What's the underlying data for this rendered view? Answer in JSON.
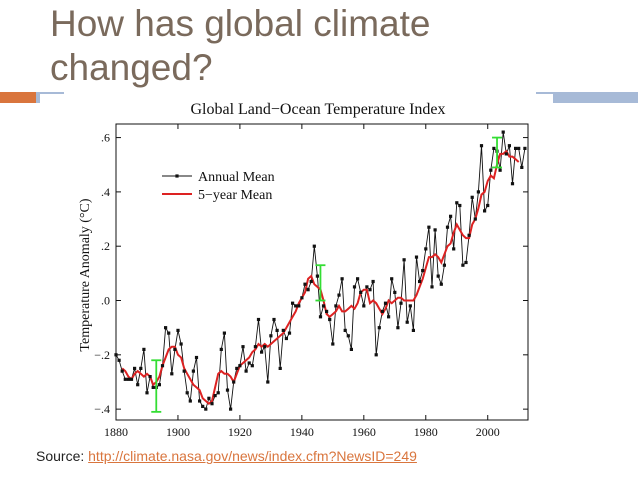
{
  "slide": {
    "title": "How has global climate changed?",
    "source_label": "Source:",
    "source_link": "http://climate.nasa.gov/news/index.cfm?NewsID=249"
  },
  "colors": {
    "title": "#7a6a5c",
    "accent_orange": "#d9753d",
    "accent_blue": "#a7bad7",
    "annual": "#111111",
    "five_year": "#dd2222",
    "error_bar": "#33dd33"
  },
  "chart_data": {
    "type": "line",
    "title": "Global Land−Ocean Temperature Index",
    "xlabel": "",
    "ylabel": "Temperature Anomaly (°C)",
    "xlim": [
      1880,
      2013
    ],
    "ylim": [
      -0.44,
      0.65
    ],
    "xticks": [
      1880,
      1900,
      1920,
      1940,
      1960,
      1980,
      2000
    ],
    "yticks": [
      -0.4,
      -0.2,
      0.0,
      0.2,
      0.4,
      0.6
    ],
    "ytick_labels": [
      "−.4",
      "−.2",
      ".0",
      ".2",
      ".4",
      ".6"
    ],
    "legend": {
      "placement": "top-left",
      "entries": [
        "Annual Mean",
        "5−year Mean"
      ]
    },
    "series": [
      {
        "name": "Annual Mean",
        "x": [
          1880,
          1881,
          1882,
          1883,
          1884,
          1885,
          1886,
          1887,
          1888,
          1889,
          1890,
          1891,
          1892,
          1893,
          1894,
          1895,
          1896,
          1897,
          1898,
          1899,
          1900,
          1901,
          1902,
          1903,
          1904,
          1905,
          1906,
          1907,
          1908,
          1909,
          1910,
          1911,
          1912,
          1913,
          1914,
          1915,
          1916,
          1917,
          1918,
          1919,
          1920,
          1921,
          1922,
          1923,
          1924,
          1925,
          1926,
          1927,
          1928,
          1929,
          1930,
          1931,
          1932,
          1933,
          1934,
          1935,
          1936,
          1937,
          1938,
          1939,
          1940,
          1941,
          1942,
          1943,
          1944,
          1945,
          1946,
          1947,
          1948,
          1949,
          1950,
          1951,
          1952,
          1953,
          1954,
          1955,
          1956,
          1957,
          1958,
          1959,
          1960,
          1961,
          1962,
          1963,
          1964,
          1965,
          1966,
          1967,
          1968,
          1969,
          1970,
          1971,
          1972,
          1973,
          1974,
          1975,
          1976,
          1977,
          1978,
          1979,
          1980,
          1981,
          1982,
          1983,
          1984,
          1985,
          1986,
          1987,
          1988,
          1989,
          1990,
          1991,
          1992,
          1993,
          1994,
          1995,
          1996,
          1997,
          1998,
          1999,
          2000,
          2001,
          2002,
          2003,
          2004,
          2005,
          2006,
          2007,
          2008,
          2009,
          2010,
          2011,
          2012
        ],
        "values": [
          -0.2,
          -0.22,
          -0.26,
          -0.29,
          -0.29,
          -0.29,
          -0.25,
          -0.31,
          -0.25,
          -0.18,
          -0.34,
          -0.28,
          -0.32,
          -0.32,
          -0.31,
          -0.24,
          -0.1,
          -0.12,
          -0.27,
          -0.18,
          -0.11,
          -0.16,
          -0.26,
          -0.34,
          -0.37,
          -0.26,
          -0.21,
          -0.37,
          -0.39,
          -0.4,
          -0.36,
          -0.38,
          -0.35,
          -0.34,
          -0.18,
          -0.12,
          -0.33,
          -0.4,
          -0.3,
          -0.25,
          -0.24,
          -0.17,
          -0.26,
          -0.23,
          -0.24,
          -0.17,
          -0.07,
          -0.19,
          -0.17,
          -0.3,
          -0.13,
          -0.07,
          -0.11,
          -0.25,
          -0.11,
          -0.14,
          -0.12,
          -0.01,
          -0.02,
          -0.02,
          0.01,
          0.06,
          0.04,
          0.07,
          0.2,
          0.09,
          -0.06,
          -0.02,
          -0.04,
          -0.07,
          -0.16,
          -0.02,
          0.02,
          0.08,
          -0.11,
          -0.13,
          -0.18,
          0.05,
          0.08,
          0.03,
          -0.02,
          0.05,
          0.04,
          0.07,
          -0.2,
          -0.1,
          -0.04,
          -0.01,
          -0.06,
          0.08,
          0.03,
          -0.1,
          -0.01,
          0.15,
          -0.08,
          -0.02,
          -0.11,
          0.16,
          0.07,
          0.11,
          0.19,
          0.27,
          0.05,
          0.26,
          0.09,
          0.06,
          0.13,
          0.27,
          0.31,
          0.19,
          0.36,
          0.35,
          0.13,
          0.14,
          0.24,
          0.38,
          0.3,
          0.4,
          0.57,
          0.33,
          0.35,
          0.48,
          0.56,
          0.55,
          0.48,
          0.62,
          0.54,
          0.57,
          0.43,
          0.56,
          0.56,
          0.49,
          0.56
        ]
      },
      {
        "name": "5−year Mean",
        "x": [
          1882,
          1883,
          1884,
          1885,
          1886,
          1887,
          1888,
          1889,
          1890,
          1891,
          1892,
          1893,
          1894,
          1895,
          1896,
          1897,
          1898,
          1899,
          1900,
          1901,
          1902,
          1903,
          1904,
          1905,
          1906,
          1907,
          1908,
          1909,
          1910,
          1911,
          1912,
          1913,
          1914,
          1915,
          1916,
          1917,
          1918,
          1919,
          1920,
          1921,
          1922,
          1923,
          1924,
          1925,
          1926,
          1927,
          1928,
          1929,
          1930,
          1931,
          1932,
          1933,
          1934,
          1935,
          1936,
          1937,
          1938,
          1939,
          1940,
          1941,
          1942,
          1943,
          1944,
          1945,
          1946,
          1947,
          1948,
          1949,
          1950,
          1951,
          1952,
          1953,
          1954,
          1955,
          1956,
          1957,
          1958,
          1959,
          1960,
          1961,
          1962,
          1963,
          1964,
          1965,
          1966,
          1967,
          1968,
          1969,
          1970,
          1971,
          1972,
          1973,
          1974,
          1975,
          1976,
          1977,
          1978,
          1979,
          1980,
          1981,
          1982,
          1983,
          1984,
          1985,
          1986,
          1987,
          1988,
          1989,
          1990,
          1991,
          1992,
          1993,
          1994,
          1995,
          1996,
          1997,
          1998,
          1999,
          2000,
          2001,
          2002,
          2003,
          2004,
          2005,
          2006,
          2007,
          2008,
          2009,
          2010
        ],
        "values": [
          -0.25,
          -0.26,
          -0.28,
          -0.29,
          -0.27,
          -0.26,
          -0.27,
          -0.28,
          -0.27,
          -0.28,
          -0.31,
          -0.3,
          -0.28,
          -0.24,
          -0.21,
          -0.18,
          -0.17,
          -0.17,
          -0.2,
          -0.21,
          -0.25,
          -0.27,
          -0.29,
          -0.31,
          -0.32,
          -0.33,
          -0.36,
          -0.37,
          -0.38,
          -0.37,
          -0.32,
          -0.27,
          -0.26,
          -0.27,
          -0.27,
          -0.28,
          -0.3,
          -0.27,
          -0.24,
          -0.23,
          -0.22,
          -0.21,
          -0.19,
          -0.18,
          -0.16,
          -0.17,
          -0.16,
          -0.17,
          -0.16,
          -0.15,
          -0.14,
          -0.13,
          -0.12,
          -0.1,
          -0.08,
          -0.06,
          -0.04,
          -0.01,
          0.01,
          0.03,
          0.08,
          0.09,
          0.06,
          0.05,
          0.04,
          0.0,
          -0.05,
          -0.06,
          -0.05,
          -0.04,
          -0.02,
          -0.04,
          -0.04,
          -0.03,
          -0.02,
          -0.03,
          -0.01,
          0.03,
          0.04,
          0.04,
          -0.01,
          0.0,
          -0.01,
          -0.03,
          -0.05,
          -0.03,
          0.0,
          -0.01,
          0.0,
          0.01,
          0.01,
          0.0,
          0.0,
          0.0,
          0.0,
          0.02,
          0.05,
          0.08,
          0.12,
          0.16,
          0.16,
          0.17,
          0.16,
          0.14,
          0.17,
          0.2,
          0.21,
          0.25,
          0.28,
          0.26,
          0.24,
          0.23,
          0.23,
          0.28,
          0.3,
          0.34,
          0.39,
          0.4,
          0.44,
          0.46,
          0.45,
          0.5,
          0.54,
          0.54,
          0.55,
          0.53,
          0.53,
          0.52,
          0.51
        ]
      }
    ],
    "error_bars": [
      {
        "x": 1893,
        "low": -0.41,
        "high": -0.22
      },
      {
        "x": 1946,
        "low": 0.0,
        "high": 0.13
      },
      {
        "x": 2003,
        "low": 0.49,
        "high": 0.6
      }
    ]
  }
}
